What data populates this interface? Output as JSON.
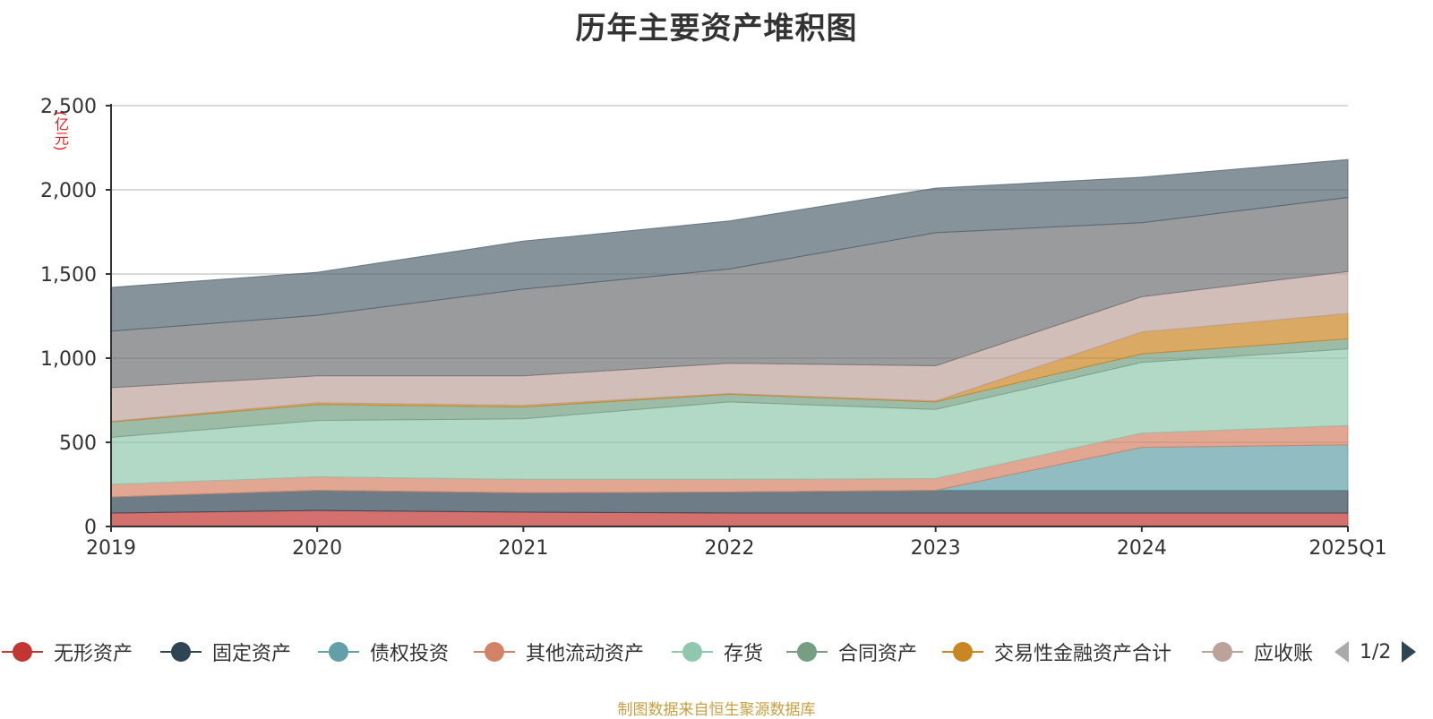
{
  "chart_data": {
    "type": "area",
    "title": "历年主要资产堆积图",
    "y_unit": "(亿元)",
    "x": [
      "2019",
      "2020",
      "2021",
      "2022",
      "2023",
      "2024",
      "2025Q1"
    ],
    "ylim": [
      0,
      2500
    ],
    "y_ticks": [
      "0",
      "500",
      "1,000",
      "1,500",
      "2,000",
      "2,500"
    ],
    "y_tick_values": [
      0,
      500,
      1000,
      1500,
      2000,
      2500
    ],
    "grid": true,
    "legend_position": "bottom",
    "series": [
      {
        "name": "无形资产",
        "color": "#c23531",
        "values": [
          80,
          95,
          85,
          80,
          80,
          80,
          80
        ]
      },
      {
        "name": "固定资产",
        "color": "#2f4554",
        "values": [
          95,
          120,
          115,
          125,
          135,
          135,
          135
        ]
      },
      {
        "name": "债权投资",
        "color": "#61a0a8",
        "values": [
          0,
          0,
          0,
          0,
          0,
          255,
          270
        ]
      },
      {
        "name": "其他流动资产",
        "color": "#d48265",
        "values": [
          75,
          80,
          80,
          75,
          70,
          85,
          115
        ]
      },
      {
        "name": "存货",
        "color": "#91c7ae",
        "values": [
          280,
          335,
          360,
          460,
          410,
          420,
          455
        ]
      },
      {
        "name": "合同资产",
        "color": "#749f83",
        "values": [
          90,
          95,
          70,
          45,
          45,
          50,
          60
        ]
      },
      {
        "name": "交易性金融资产合计",
        "color": "#ca8622",
        "values": [
          5,
          10,
          10,
          5,
          5,
          130,
          150
        ]
      },
      {
        "name": "应收账款",
        "color": "#bda29a",
        "values": [
          200,
          160,
          175,
          180,
          210,
          210,
          250
        ]
      },
      {
        "name": "",
        "color": "#6e7074",
        "values": [
          335,
          360,
          515,
          560,
          790,
          440,
          440
        ]
      },
      {
        "name": "",
        "color": "#546570",
        "values": [
          260,
          255,
          285,
          285,
          265,
          270,
          225
        ]
      }
    ],
    "legend_entries": [
      "无形资产",
      "固定资产",
      "债权投资",
      "其他流动资产",
      "存货",
      "合同资产",
      "交易性金融资产合计",
      "应收账"
    ]
  },
  "legend_page": "1/2",
  "source_note": "制图数据来自恒生聚源数据库",
  "icons": {
    "prev": "triangle-left-icon",
    "next": "triangle-right-icon"
  }
}
